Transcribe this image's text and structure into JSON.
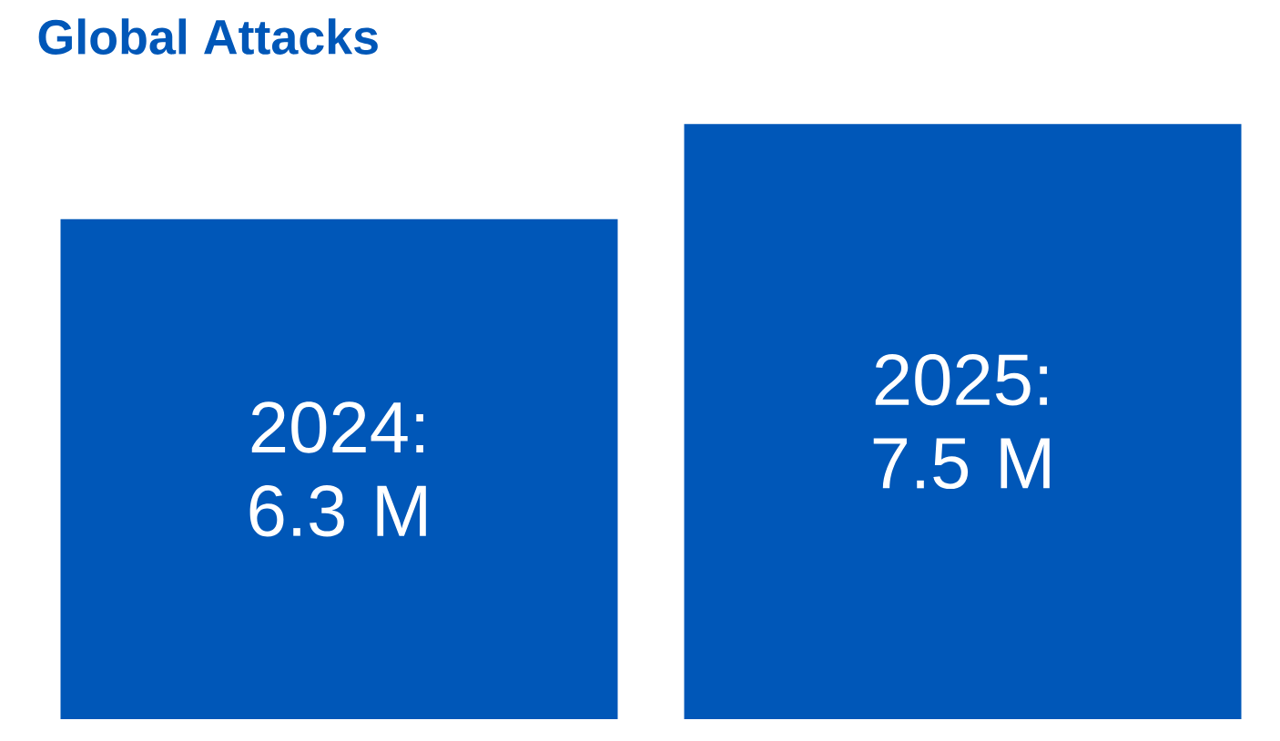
{
  "chart_data": {
    "type": "bar",
    "title": "Global Attacks",
    "categories": [
      null,
      null
    ],
    "values": [
      6.3,
      7.5
    ],
    "value_labels": [
      "2024: 6.3 M",
      "2025: 7.5 M"
    ],
    "color": "#0057b8"
  }
}
